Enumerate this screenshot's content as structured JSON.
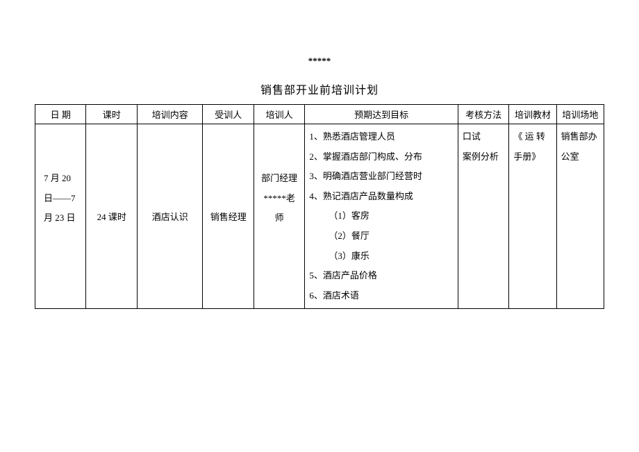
{
  "header_stars": "*****",
  "title": "销售部开业前培训计划",
  "table": {
    "headers": {
      "date": "日 期",
      "hours": "课时",
      "content": "培训内容",
      "trainee": "受训人",
      "trainer": "培训人",
      "goals": "预期达到目标",
      "method": "考核方法",
      "material": "培训教材",
      "venue": "培训场地"
    },
    "row": {
      "date": {
        "line1": "7 月 20",
        "line2": "日——7",
        "line3": "月 23 日"
      },
      "hours": "24 课时",
      "content": "酒店认识",
      "trainee": "销售经理",
      "trainer": {
        "line1": "部门经理",
        "line2": "*****老",
        "line3": "师"
      },
      "goals": {
        "g1": "1、熟悉酒店管理人员",
        "g2": "2、掌握酒店部门构成、分布",
        "g3": "3、明确酒店营业部门经营时",
        "g4": "4、熟记酒店产品数量构成",
        "g4a": "（1）客房",
        "g4b": "（2）餐厅",
        "g4c": "（3）康乐",
        "g5": "5、酒店产品价格",
        "g6": "6、酒店术语"
      },
      "method": {
        "m1": "口试",
        "m2": "案例分析"
      },
      "material": {
        "line1": "《 运 转",
        "line2": "手册》"
      },
      "venue": {
        "line1": "销售部办",
        "line2": "公室"
      }
    }
  }
}
